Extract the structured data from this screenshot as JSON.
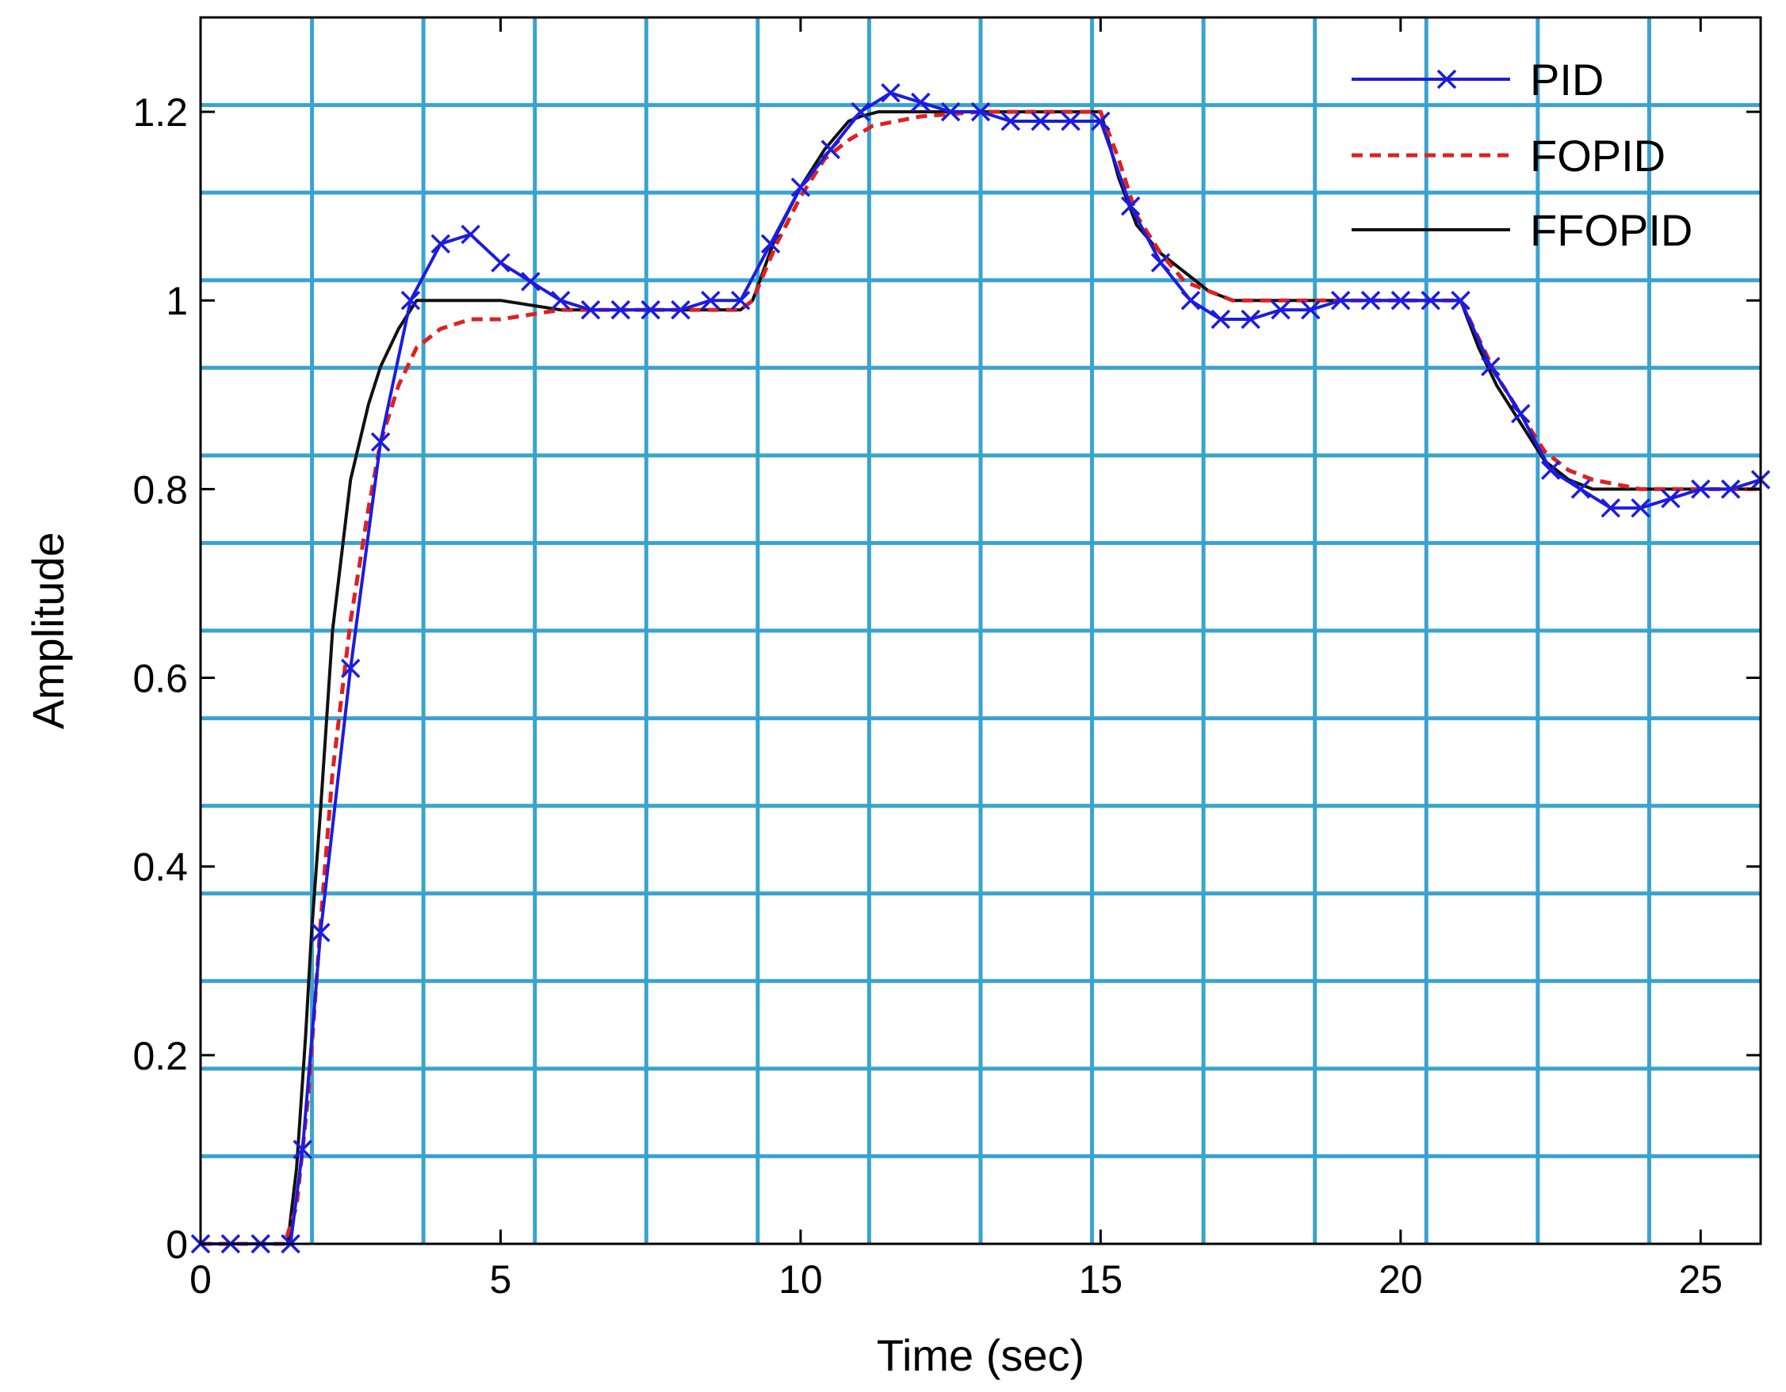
{
  "chart_data": {
    "type": "line",
    "title": "",
    "xlabel": "Time (sec)",
    "ylabel": "Amplitude",
    "xlim": [
      0,
      26
    ],
    "ylim": [
      0,
      1.3
    ],
    "xticks": [
      0,
      5,
      10,
      15,
      20,
      25
    ],
    "xtick_labels": [
      "0",
      "5",
      "10",
      "15",
      "20",
      "25"
    ],
    "yticks": [
      0,
      0.2,
      0.4,
      0.6,
      0.8,
      1.0,
      1.2
    ],
    "ytick_labels": [
      "0",
      "0.2",
      "0.4",
      "0.6",
      "0.8",
      "1",
      "1.2"
    ],
    "grid": true,
    "grid_color": "#39a3cf",
    "legend_position": "top-right",
    "series": [
      {
        "name": "PID",
        "color": "#1c1ce0",
        "style": "solid",
        "marker": "x",
        "x": [
          0,
          0.5,
          1.0,
          1.5,
          1.7,
          2.0,
          2.5,
          3.0,
          3.5,
          4.0,
          4.5,
          5.0,
          5.5,
          6.0,
          6.5,
          7.0,
          7.5,
          8.0,
          8.5,
          9.0,
          9.5,
          10.0,
          10.5,
          11.0,
          11.5,
          12.0,
          12.5,
          13.0,
          13.5,
          14.0,
          14.5,
          15.0,
          15.5,
          16.0,
          16.5,
          17.0,
          17.5,
          18.0,
          18.5,
          19.0,
          19.5,
          20.0,
          20.5,
          21.0,
          21.5,
          22.0,
          22.5,
          23.0,
          23.5,
          24.0,
          24.5,
          25.0,
          25.5,
          26.0
        ],
        "y": [
          0,
          0,
          0,
          0,
          0.1,
          0.33,
          0.61,
          0.85,
          1.0,
          1.06,
          1.07,
          1.04,
          1.02,
          1.0,
          0.99,
          0.99,
          0.99,
          0.99,
          1.0,
          1.0,
          1.06,
          1.12,
          1.16,
          1.2,
          1.22,
          1.21,
          1.2,
          1.2,
          1.19,
          1.19,
          1.19,
          1.19,
          1.1,
          1.04,
          1.0,
          0.98,
          0.98,
          0.99,
          0.99,
          1.0,
          1.0,
          1.0,
          1.0,
          1.0,
          0.93,
          0.88,
          0.82,
          0.8,
          0.78,
          0.78,
          0.79,
          0.8,
          0.8,
          0.81
        ]
      },
      {
        "name": "FOPID",
        "color": "#e02020",
        "style": "dashed",
        "marker": "none",
        "x": [
          0,
          1.4,
          1.6,
          1.8,
          2.0,
          2.2,
          2.5,
          2.8,
          3.0,
          3.3,
          3.6,
          4.0,
          4.5,
          5.0,
          6.0,
          7.0,
          8.0,
          9.0,
          9.2,
          9.6,
          10.0,
          10.4,
          10.8,
          11.2,
          11.6,
          12.0,
          13.0,
          14.0,
          15.0,
          15.3,
          15.6,
          16.0,
          16.4,
          16.8,
          17.2,
          18.0,
          19.0,
          20.0,
          21.0,
          21.3,
          21.6,
          22.0,
          22.4,
          22.8,
          23.2,
          24.0,
          25.0,
          26.0
        ],
        "y": [
          0,
          0,
          0.04,
          0.16,
          0.34,
          0.5,
          0.66,
          0.78,
          0.85,
          0.91,
          0.95,
          0.97,
          0.98,
          0.98,
          0.99,
          0.99,
          0.99,
          0.99,
          1.0,
          1.06,
          1.11,
          1.15,
          1.17,
          1.185,
          1.19,
          1.195,
          1.2,
          1.2,
          1.2,
          1.15,
          1.09,
          1.05,
          1.02,
          1.01,
          1.0,
          1.0,
          1.0,
          1.0,
          1.0,
          0.96,
          0.92,
          0.88,
          0.84,
          0.82,
          0.81,
          0.8,
          0.8,
          0.8
        ]
      },
      {
        "name": "FFOPID",
        "color": "#111111",
        "style": "solid",
        "marker": "none",
        "x": [
          0,
          1.45,
          1.6,
          1.75,
          1.85,
          2.0,
          2.2,
          2.5,
          2.8,
          3.0,
          3.3,
          3.6,
          3.8,
          4.0,
          5.0,
          6.0,
          7.0,
          8.0,
          9.0,
          9.2,
          9.6,
          10.0,
          10.4,
          10.8,
          11.0,
          11.3,
          11.6,
          12.0,
          13.0,
          14.0,
          15.0,
          15.3,
          15.6,
          16.0,
          16.4,
          16.8,
          17.2,
          18.0,
          19.0,
          20.0,
          21.0,
          21.3,
          21.6,
          22.0,
          22.4,
          22.8,
          23.2,
          24.0,
          25.0,
          26.0
        ],
        "y": [
          0,
          0,
          0.08,
          0.22,
          0.33,
          0.46,
          0.65,
          0.81,
          0.89,
          0.93,
          0.97,
          1.0,
          1.0,
          1.0,
          1.0,
          0.99,
          0.99,
          0.99,
          0.99,
          1.0,
          1.07,
          1.12,
          1.16,
          1.19,
          1.195,
          1.2,
          1.2,
          1.2,
          1.2,
          1.2,
          1.2,
          1.13,
          1.08,
          1.05,
          1.03,
          1.01,
          1.0,
          1.0,
          1.0,
          1.0,
          1.0,
          0.95,
          0.91,
          0.87,
          0.83,
          0.81,
          0.8,
          0.8,
          0.8,
          0.8
        ]
      }
    ]
  }
}
